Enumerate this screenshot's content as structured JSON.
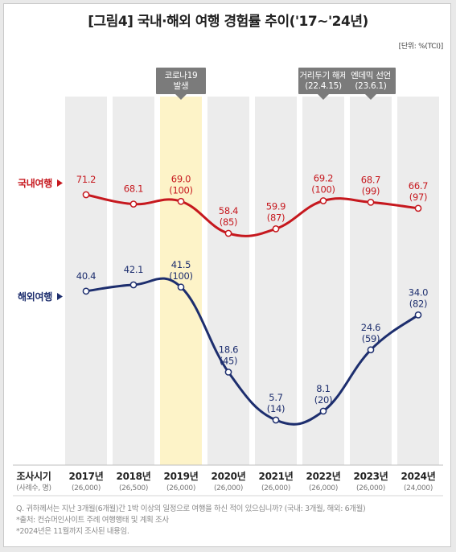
{
  "title": "[그림4] 국내·해외 여행 경험률 추이('17~'24년)",
  "unit": "[단위: %(TCI)]",
  "chart_data": {
    "type": "line",
    "title": "[그림4] 국내·해외 여행 경험률 추이('17~'24년)",
    "unit": "[단위: %(TCI)]",
    "categories": [
      "2017년",
      "2018년",
      "2019년",
      "2020년",
      "2021년",
      "2022년",
      "2023년",
      "2024년"
    ],
    "sample_sizes": [
      "(26,000)",
      "(26,500)",
      "(26,000)",
      "(26,000)",
      "(26,000)",
      "(26,000)",
      "(26,000)",
      "(24,000)"
    ],
    "axis_label": "조사시기",
    "axis_sublabel": "(사례수, 명)",
    "highlight_category": "2019년",
    "series": [
      {
        "name": "국내여행",
        "color": "#c6181e",
        "values": [
          71.2,
          68.1,
          69.0,
          58.4,
          59.9,
          69.2,
          68.7,
          66.7
        ],
        "index": [
          null,
          null,
          100,
          85,
          87,
          100,
          99,
          97
        ],
        "value_labels": [
          "71.2",
          "68.1",
          "69.0",
          "58.4",
          "59.9",
          "69.2",
          "68.7",
          "66.7"
        ],
        "index_labels": [
          "",
          "",
          "(100)",
          "(85)",
          "(87)",
          "(100)",
          "(99)",
          "(97)"
        ]
      },
      {
        "name": "해외여행",
        "color": "#1d2e6e",
        "values": [
          40.4,
          42.1,
          41.5,
          18.6,
          5.7,
          8.1,
          24.6,
          34.0
        ],
        "index": [
          null,
          null,
          100,
          45,
          14,
          20,
          59,
          82
        ],
        "value_labels": [
          "40.4",
          "42.1",
          "41.5",
          "18.6",
          "5.7",
          "8.1",
          "24.6",
          "34.0"
        ],
        "index_labels": [
          "",
          "",
          "(100)",
          "(45)",
          "(14)",
          "(20)",
          "(59)",
          "(82)"
        ]
      }
    ],
    "annotations": [
      {
        "category": "2019년",
        "lines": [
          "코로나19",
          "발생"
        ]
      },
      {
        "category": "2022년",
        "lines": [
          "거리두기 해제",
          "(22.4.15)"
        ]
      },
      {
        "category": "2023년",
        "lines": [
          "엔데믹 선언",
          "(23.6.1)"
        ]
      }
    ],
    "colors": {
      "column": "#ececec",
      "highlight": "#fdf3c8",
      "tag": "#7b7b7b"
    }
  },
  "notes": [
    "Q. 귀하께서는 지난 3개월(6개월)간 1박 이상의 일정으로 여행을 하신 적이 있으십니까? (국내: 3개월, 해외: 6개월)",
    "*출처: 컨슈머인사이트 주례 여행행태 및 계획 조사",
    "*2024년은 11월까지 조사된 내용임."
  ]
}
